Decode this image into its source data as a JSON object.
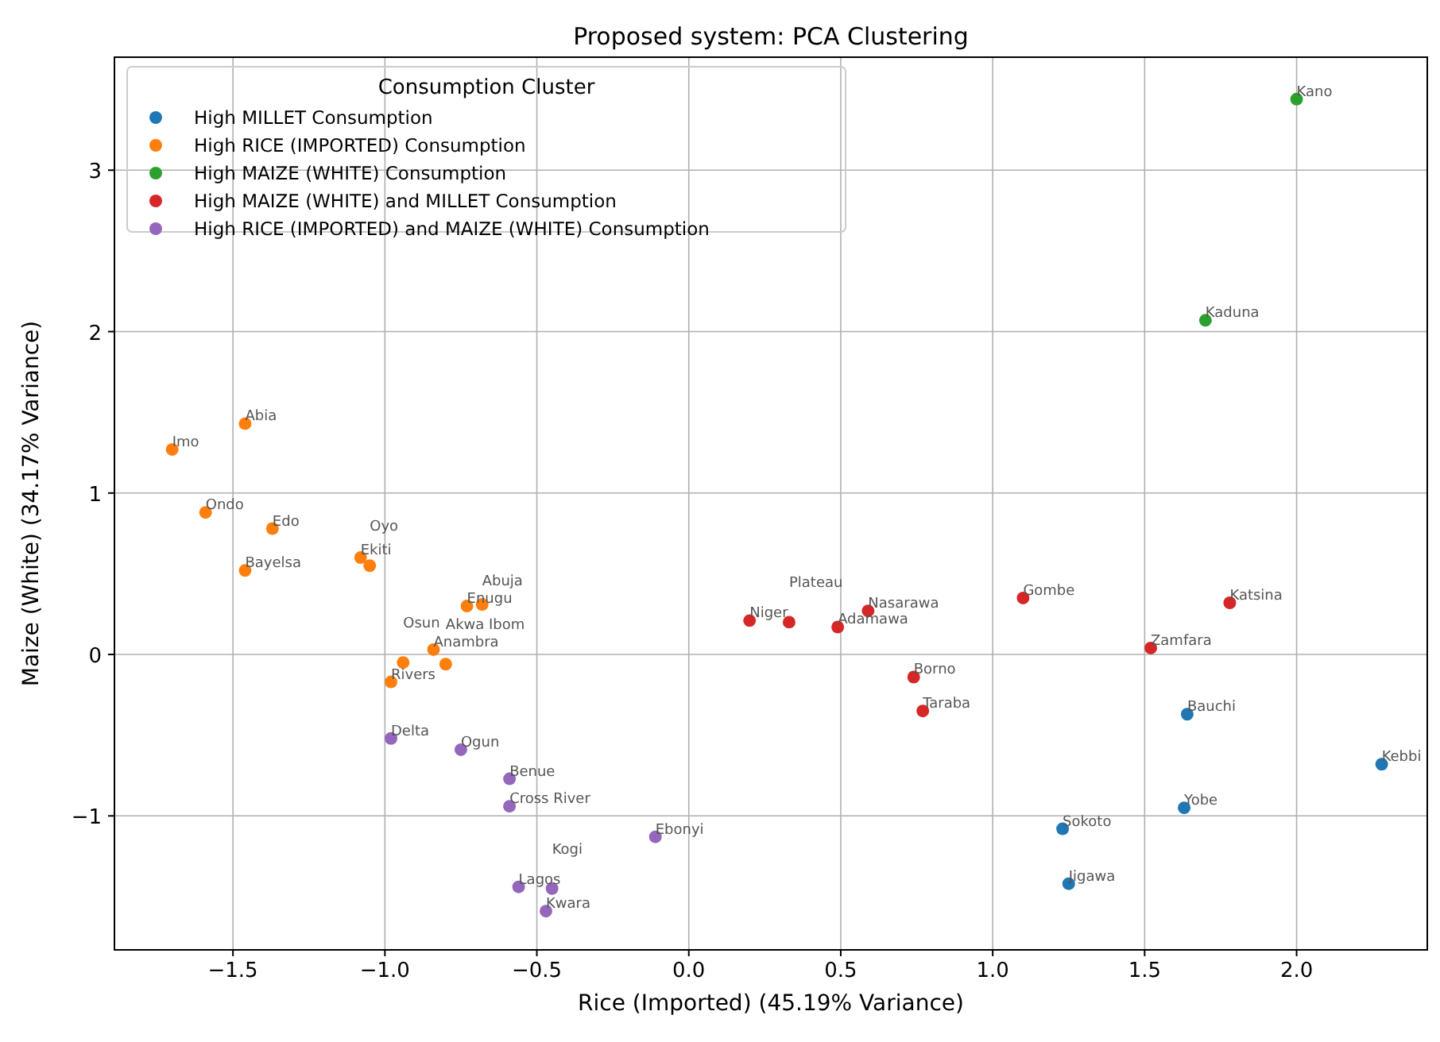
{
  "chart_data": {
    "type": "scatter",
    "title": "Proposed system: PCA Clustering",
    "xlabel": "Rice (Imported) (45.19% Variance)",
    "ylabel": "Maize (White) (34.17% Variance)",
    "legend_title": "Consumption Cluster",
    "legend": "top left",
    "grid": true,
    "marker": "circle",
    "xlim": [
      -1.89,
      2.43
    ],
    "ylim": [
      -1.83,
      3.7
    ],
    "xticks": [
      {
        "value": -1.5,
        "label": "−1.5"
      },
      {
        "value": -1.0,
        "label": "−1.0"
      },
      {
        "value": -0.5,
        "label": "−0.5"
      },
      {
        "value": 0,
        "label": "0.0"
      },
      {
        "value": 0.5,
        "label": "0.5"
      },
      {
        "value": 1.0,
        "label": "1.0"
      },
      {
        "value": 1.5,
        "label": "1.5"
      },
      {
        "value": 2.0,
        "label": "2.0"
      }
    ],
    "yticks": [
      {
        "value": -1,
        "label": "−1"
      },
      0,
      1,
      2,
      3
    ],
    "series": [
      {
        "name": "High MILLET Consumption",
        "color": "#1f77b4",
        "x": [
          1.64,
          2.28,
          1.63,
          1.23,
          1.25
        ],
        "values": [
          -0.37,
          -0.68,
          -0.95,
          -1.08,
          -1.42
        ]
      },
      {
        "name": "High RICE (IMPORTED) Consumption",
        "color": "#ff7f0e",
        "x": [
          -1.7,
          -1.46,
          -1.59,
          -1.37,
          -1.46,
          -1.08,
          -1.05,
          -0.73,
          -0.68,
          -0.84,
          -0.94,
          -0.8,
          -0.98
        ],
        "values": [
          1.27,
          1.43,
          0.88,
          0.78,
          0.52,
          0.6,
          0.55,
          0.3,
          0.31,
          0.03,
          -0.05,
          -0.06,
          -0.17
        ]
      },
      {
        "name": "High MAIZE (WHITE) Consumption",
        "color": "#2ca02c",
        "x": [
          2.0,
          1.7
        ],
        "values": [
          3.44,
          2.07
        ]
      },
      {
        "name": "High MAIZE (WHITE) and MILLET Consumption",
        "color": "#d62728",
        "x": [
          0.2,
          0.33,
          0.49,
          0.59,
          1.1,
          1.78,
          1.52,
          0.74,
          0.77
        ],
        "values": [
          0.21,
          0.2,
          0.17,
          0.27,
          0.35,
          0.32,
          0.04,
          -0.14,
          -0.35
        ]
      },
      {
        "name": "High RICE (IMPORTED) and MAIZE (WHITE) Consumption",
        "color": "#9467bd",
        "x": [
          -0.98,
          -0.75,
          -0.59,
          -0.59,
          -0.11,
          -0.56,
          -0.45,
          -0.47
        ],
        "values": [
          -0.52,
          -0.59,
          -0.77,
          -0.94,
          -1.13,
          -1.44,
          -1.45,
          -1.59
        ]
      }
    ],
    "annotations": [
      {
        "text": "Bauchi",
        "x": 1.64,
        "y": -0.37
      },
      {
        "text": "Kebbi",
        "x": 2.28,
        "y": -0.68
      },
      {
        "text": "Yobe",
        "x": 1.63,
        "y": -0.95
      },
      {
        "text": "Sokoto",
        "x": 1.23,
        "y": -1.08
      },
      {
        "text": "Jigawa",
        "x": 1.25,
        "y": -1.42
      },
      {
        "text": "Imo",
        "x": -1.7,
        "y": 1.27
      },
      {
        "text": "Abia",
        "x": -1.46,
        "y": 1.43
      },
      {
        "text": "Ondo",
        "x": -1.59,
        "y": 0.88
      },
      {
        "text": "Edo",
        "x": -1.37,
        "y": 0.78
      },
      {
        "text": "Bayelsa",
        "x": -1.46,
        "y": 0.52
      },
      {
        "text": "Ekiti",
        "x": -1.08,
        "y": 0.6
      },
      {
        "text": "Oyo",
        "x": -1.05,
        "y": 0.55
      },
      {
        "text": "Enugu",
        "x": -0.73,
        "y": 0.3
      },
      {
        "text": "Abuja",
        "x": -0.68,
        "y": 0.31
      },
      {
        "text": "Anambra",
        "x": -0.84,
        "y": 0.03
      },
      {
        "text": "Osun",
        "x": -0.94,
        "y": -0.05
      },
      {
        "text": "Akwa Ibom",
        "x": -0.8,
        "y": -0.06
      },
      {
        "text": "Rivers",
        "x": -0.98,
        "y": -0.17
      },
      {
        "text": "Kano",
        "x": 2.0,
        "y": 3.44
      },
      {
        "text": "Kaduna",
        "x": 1.7,
        "y": 2.07
      },
      {
        "text": "Niger",
        "x": 0.2,
        "y": 0.21
      },
      {
        "text": "Plateau",
        "x": 0.33,
        "y": 0.2
      },
      {
        "text": "Adamawa",
        "x": 0.49,
        "y": 0.17
      },
      {
        "text": "Nasarawa",
        "x": 0.59,
        "y": 0.27
      },
      {
        "text": "Gombe",
        "x": 1.1,
        "y": 0.35
      },
      {
        "text": "Katsina",
        "x": 1.78,
        "y": 0.32
      },
      {
        "text": "Zamfara",
        "x": 1.52,
        "y": 0.04
      },
      {
        "text": "Borno",
        "x": 0.74,
        "y": -0.14
      },
      {
        "text": "Taraba",
        "x": 0.77,
        "y": -0.35
      },
      {
        "text": "Delta",
        "x": -0.98,
        "y": -0.52
      },
      {
        "text": "Ogun",
        "x": -0.75,
        "y": -0.59
      },
      {
        "text": "Benue",
        "x": -0.59,
        "y": -0.77
      },
      {
        "text": "Cross River",
        "x": -0.59,
        "y": -0.94
      },
      {
        "text": "Ebonyi",
        "x": -0.11,
        "y": -1.13
      },
      {
        "text": "Lagos",
        "x": -0.56,
        "y": -1.44
      },
      {
        "text": "Kogi",
        "x": -0.45,
        "y": -1.45
      },
      {
        "text": "Kwara",
        "x": -0.47,
        "y": -1.59
      }
    ]
  }
}
